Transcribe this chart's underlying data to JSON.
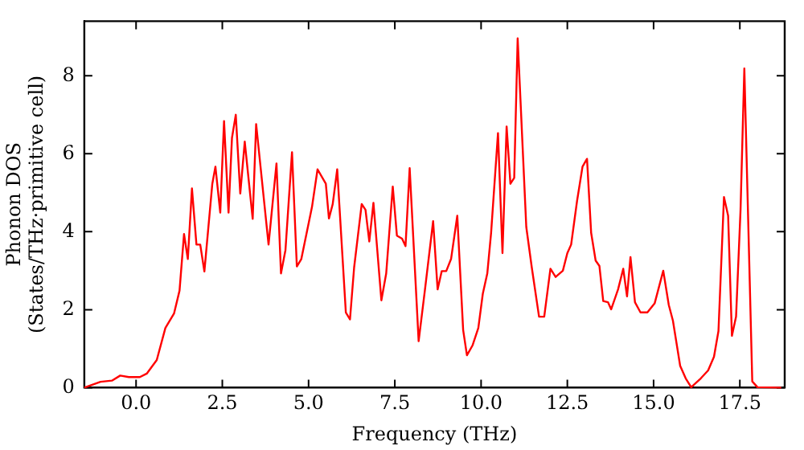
{
  "chart_data": {
    "type": "line",
    "xlabel": "Frequency (THz)",
    "ylabel": "Phonon DOS\n(States/THz·primitive cell)",
    "xlim": [
      -1.5,
      18.8
    ],
    "ylim": [
      0,
      9.4
    ],
    "xticks": [
      {
        "value": 0,
        "label": "0.0"
      },
      {
        "value": 2.5,
        "label": "2.5"
      },
      {
        "value": 5,
        "label": "5.0"
      },
      {
        "value": 7.5,
        "label": "7.5"
      },
      {
        "value": 10,
        "label": "10.0"
      },
      {
        "value": 12.5,
        "label": "12.5"
      },
      {
        "value": 15,
        "label": "15.0"
      },
      {
        "value": 17.5,
        "label": "17.5"
      }
    ],
    "yticks": [
      0,
      2,
      4,
      6,
      8
    ],
    "grid": false,
    "legend": false,
    "marker": "none",
    "line_style": "solid",
    "series": [
      {
        "color": "#ff0000",
        "x": [
          -1.5,
          -1.03,
          -0.7,
          -0.46,
          -0.21,
          0.11,
          0.31,
          0.6,
          0.85,
          1.1,
          1.26,
          1.39,
          1.5,
          1.62,
          1.75,
          1.86,
          1.98,
          2.21,
          2.3,
          2.44,
          2.55,
          2.68,
          2.78,
          2.89,
          3.02,
          3.15,
          3.38,
          3.48,
          3.84,
          4.07,
          4.2,
          4.33,
          4.52,
          4.66,
          4.79,
          5.1,
          5.26,
          5.5,
          5.59,
          5.7,
          5.83,
          6.08,
          6.2,
          6.32,
          6.54,
          6.65,
          6.76,
          6.88,
          7.11,
          7.25,
          7.44,
          7.56,
          7.71,
          7.81,
          7.93,
          8.19,
          8.37,
          8.61,
          8.74,
          8.86,
          8.99,
          9.13,
          9.31,
          9.48,
          9.59,
          9.75,
          9.92,
          10.05,
          10.18,
          10.29,
          10.49,
          10.62,
          10.74,
          10.85,
          10.96,
          11.06,
          11.31,
          11.47,
          11.68,
          11.83,
          12.01,
          12.16,
          12.37,
          12.5,
          12.61,
          12.78,
          12.94,
          13.07,
          13.19,
          13.32,
          13.43,
          13.54,
          13.68,
          13.77,
          13.97,
          14.12,
          14.23,
          14.33,
          14.46,
          14.62,
          14.82,
          15.03,
          15.28,
          15.44,
          15.56,
          15.77,
          15.93,
          16.09,
          16.37,
          16.58,
          16.75,
          16.88,
          17.04,
          17.16,
          17.27,
          17.39,
          17.52,
          17.63,
          17.86,
          18.01,
          18.7
        ],
        "values": [
          0,
          0.15,
          0.18,
          0.31,
          0.27,
          0.27,
          0.36,
          0.71,
          1.53,
          1.9,
          2.49,
          3.94,
          3.3,
          5.11,
          3.67,
          3.67,
          2.98,
          5.23,
          5.67,
          4.49,
          6.84,
          4.49,
          6.41,
          7.0,
          4.98,
          6.31,
          4.33,
          6.76,
          3.67,
          5.75,
          2.93,
          3.53,
          6.04,
          3.11,
          3.3,
          4.64,
          5.6,
          5.23,
          4.34,
          4.71,
          5.6,
          1.93,
          1.75,
          3.08,
          4.71,
          4.56,
          3.75,
          4.74,
          2.24,
          2.93,
          5.16,
          3.9,
          3.82,
          3.63,
          5.63,
          1.19,
          2.49,
          4.27,
          2.52,
          2.99,
          2.99,
          3.3,
          4.41,
          1.48,
          0.83,
          1.08,
          1.53,
          2.41,
          2.93,
          3.97,
          6.53,
          3.45,
          6.7,
          5.23,
          5.38,
          8.96,
          4.12,
          3.08,
          1.82,
          1.82,
          3.05,
          2.84,
          3.0,
          3.45,
          3.67,
          4.78,
          5.67,
          5.87,
          3.97,
          3.26,
          3.12,
          2.22,
          2.19,
          2.01,
          2.52,
          3.05,
          2.34,
          3.35,
          2.19,
          1.93,
          1.93,
          2.16,
          3.0,
          2.12,
          1.72,
          0.56,
          0.24,
          0.01,
          0.24,
          0.44,
          0.79,
          1.45,
          4.89,
          4.41,
          1.33,
          1.82,
          4.56,
          8.19,
          0.16,
          0.01,
          0
        ]
      }
    ]
  }
}
